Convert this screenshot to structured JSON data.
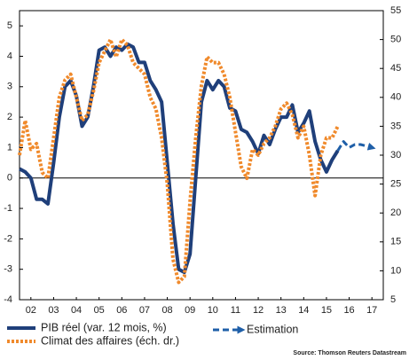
{
  "chart_data": {
    "type": "line",
    "xlim": [
      2002,
      2018
    ],
    "xticks": [
      {
        "value": 2002.5,
        "label": "02"
      },
      {
        "value": 2003.5,
        "label": "03"
      },
      {
        "value": 2004.5,
        "label": "04"
      },
      {
        "value": 2005.5,
        "label": "05"
      },
      {
        "value": 2006.5,
        "label": "06"
      },
      {
        "value": 2007.5,
        "label": "07"
      },
      {
        "value": 2008.5,
        "label": "08"
      },
      {
        "value": 2009.5,
        "label": "09"
      },
      {
        "value": 2010.5,
        "label": "10"
      },
      {
        "value": 2011.5,
        "label": "11"
      },
      {
        "value": 2012.5,
        "label": "12"
      },
      {
        "value": 2013.5,
        "label": "13"
      },
      {
        "value": 2014.5,
        "label": "14"
      },
      {
        "value": 2015.5,
        "label": "15"
      },
      {
        "value": 2016.5,
        "label": "16"
      },
      {
        "value": 2017.5,
        "label": "17"
      }
    ],
    "ylim": [
      -4,
      5.5
    ],
    "yticks": [
      -4,
      -3,
      -2,
      -1,
      0,
      1,
      2,
      3,
      4,
      5
    ],
    "y2lim": [
      5,
      55
    ],
    "y2ticks": [
      5,
      10,
      15,
      20,
      25,
      30,
      35,
      40,
      45,
      50,
      55
    ],
    "zero_line": true,
    "source": "Source: Thomson Reuters Datastream",
    "series": [
      {
        "name": "PIB réel (var. 12 mois, %)",
        "color": "#1f3f7a",
        "style": "solid",
        "axis": "y",
        "x": [
          2002,
          2002.25,
          2002.5,
          2002.75,
          2003,
          2003.25,
          2003.5,
          2003.75,
          2004,
          2004.25,
          2004.5,
          2004.75,
          2005,
          2005.25,
          2005.5,
          2005.75,
          2006,
          2006.25,
          2006.5,
          2006.75,
          2007,
          2007.25,
          2007.5,
          2007.75,
          2008,
          2008.25,
          2008.5,
          2008.75,
          2009,
          2009.25,
          2009.5,
          2009.75,
          2010,
          2010.25,
          2010.5,
          2010.75,
          2011,
          2011.25,
          2011.5,
          2011.75,
          2012,
          2012.25,
          2012.5,
          2012.75,
          2013,
          2013.25,
          2013.5,
          2013.75,
          2014,
          2014.25,
          2014.5,
          2014.75,
          2015,
          2015.25,
          2015.5,
          2015.75,
          2016
        ],
        "values": [
          0.3,
          0.2,
          0.0,
          -0.7,
          -0.7,
          -0.85,
          0.5,
          2.0,
          3.0,
          3.2,
          2.7,
          1.7,
          2.0,
          3.0,
          4.2,
          4.3,
          4.0,
          4.3,
          4.2,
          4.4,
          4.3,
          3.8,
          3.8,
          3.2,
          2.9,
          2.5,
          0.5,
          -1.5,
          -3.0,
          -3.1,
          -2.5,
          0.0,
          2.5,
          3.2,
          2.9,
          3.2,
          3.0,
          2.3,
          2.2,
          1.6,
          1.5,
          1.2,
          0.8,
          1.4,
          1.1,
          1.6,
          2.0,
          2.0,
          2.4,
          1.5,
          1.8,
          2.2,
          1.2,
          0.6,
          0.2,
          0.6,
          0.9
        ]
      },
      {
        "name": "Climat des affaires (éch. dr.)",
        "color": "#f08a2c",
        "style": "dotted",
        "axis": "y2",
        "x": [
          2002,
          2002.25,
          2002.5,
          2002.75,
          2003,
          2003.25,
          2003.5,
          2003.75,
          2004,
          2004.25,
          2004.5,
          2004.75,
          2005,
          2005.25,
          2005.5,
          2005.75,
          2006,
          2006.25,
          2006.5,
          2006.75,
          2007,
          2007.25,
          2007.5,
          2007.75,
          2008,
          2008.25,
          2008.5,
          2008.75,
          2009,
          2009.25,
          2009.5,
          2009.75,
          2010,
          2010.25,
          2010.5,
          2010.75,
          2011,
          2011.25,
          2011.5,
          2011.75,
          2012,
          2012.25,
          2012.5,
          2012.75,
          2013,
          2013.25,
          2013.5,
          2013.75,
          2014,
          2014.25,
          2014.5,
          2014.75,
          2015,
          2015.25,
          2015.5,
          2015.75,
          2016
        ],
        "values": [
          30,
          36,
          31,
          32,
          27,
          26,
          33,
          40,
          43,
          44,
          40,
          36,
          37,
          41,
          46,
          48,
          50,
          47,
          50,
          49,
          46,
          45,
          44,
          40,
          38,
          33,
          25,
          12,
          8,
          9,
          22,
          33,
          42,
          47,
          46,
          46,
          44,
          40,
          34,
          28,
          26,
          31,
          30,
          32,
          33,
          35,
          38,
          39,
          37,
          33,
          35,
          30,
          23,
          30,
          33,
          33,
          35
        ]
      },
      {
        "name": "Estimation",
        "color": "#1f5fa8",
        "style": "dashed",
        "axis": "y",
        "x": [
          2016,
          2016.25,
          2016.5,
          2016.75,
          2017,
          2017.25,
          2017.5
        ],
        "values": [
          0.9,
          1.2,
          1.0,
          1.1,
          1.1,
          1.05,
          1.0
        ]
      }
    ]
  }
}
